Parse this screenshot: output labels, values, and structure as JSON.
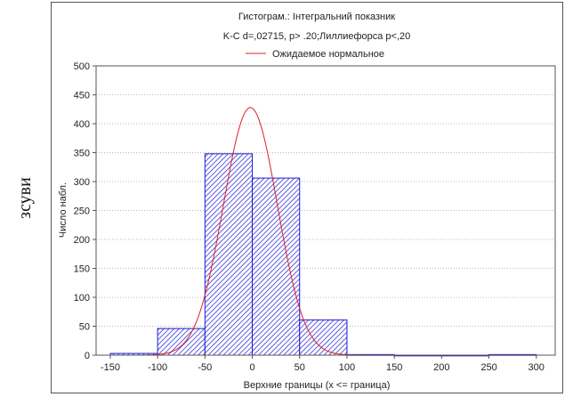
{
  "side_label": "зсуви",
  "chart_data": {
    "type": "bar",
    "title": "Гистограм.: Інтегральний показник",
    "subtitle": "K-C d=,02715, p> .20;Лиллиефорса p<,20",
    "legend": {
      "label": "Ожидаемое нормальное",
      "color": "#e02020",
      "placement": "top-center"
    },
    "xlabel": "Верхние границы (x <= граница)",
    "ylabel": "Число набл.",
    "xlim": [
      -165,
      320
    ],
    "ylim": [
      0,
      500
    ],
    "xticks": [
      -150,
      -100,
      -50,
      0,
      50,
      100,
      150,
      200,
      250,
      300
    ],
    "yticks": [
      0,
      50,
      100,
      150,
      200,
      250,
      300,
      350,
      400,
      450,
      500
    ],
    "grid": true,
    "bar_color": "#1a1ad6",
    "curve_color": "#e02020",
    "bins": [
      {
        "upper": -100,
        "value": 3
      },
      {
        "upper": -50,
        "value": 46
      },
      {
        "upper": 0,
        "value": 348
      },
      {
        "upper": 50,
        "value": 306
      },
      {
        "upper": 100,
        "value": 61
      },
      {
        "upper": 150,
        "value": 1
      },
      {
        "upper": 200,
        "value": 0
      },
      {
        "upper": 250,
        "value": 0
      },
      {
        "upper": 300,
        "value": 1
      }
    ],
    "bin_width": 50,
    "normal_curve": {
      "mean": -2,
      "sd": 28.5,
      "peak": 428
    }
  }
}
